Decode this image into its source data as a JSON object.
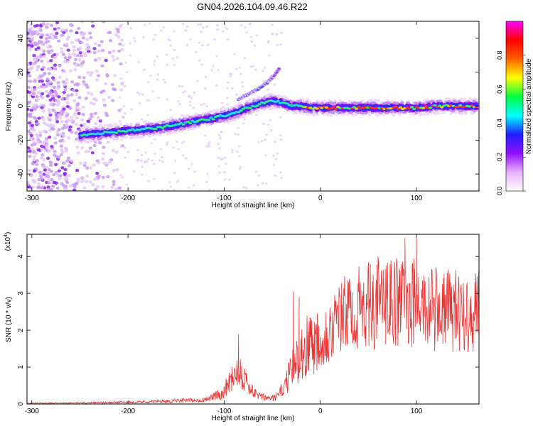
{
  "title": "GN04.2026.104.09.46.R22",
  "chart_data": [
    {
      "type": "heatmap",
      "xlabel": "Height of straight line (km)",
      "ylabel": "Frequency (Hz)",
      "xlim": [
        -305,
        165
      ],
      "ylim": [
        -50,
        50
      ],
      "xticks": [
        -300,
        -200,
        -100,
        0,
        100
      ],
      "yticks": [
        -40,
        -20,
        0,
        20,
        40
      ],
      "grid": false,
      "colorbar": {
        "label": "Normalized spectral amplitude",
        "ticks": [
          0.0,
          0.2,
          0.4,
          0.6,
          0.8
        ],
        "range": [
          0,
          1
        ],
        "colors": [
          "#ffffff",
          "#e8b0ff",
          "#9010ff",
          "#2020ff",
          "#00ffff",
          "#00ff40",
          "#ffff00",
          "#ff6000",
          "#ff0000",
          "#ff00ff"
        ]
      },
      "ridge": {
        "x": [
          -250,
          -230,
          -210,
          -190,
          -170,
          -150,
          -130,
          -110,
          -90,
          -75,
          -60,
          -48,
          -40,
          -30,
          -20,
          -10,
          0,
          20,
          40,
          60,
          80,
          100,
          120,
          140,
          160
        ],
        "y": [
          -17,
          -16,
          -15,
          -14,
          -13,
          -11,
          -9,
          -7,
          -4,
          -1,
          2,
          3,
          2,
          0,
          0,
          -1,
          -1,
          -1,
          -1,
          -1,
          -1,
          -1,
          0,
          0,
          0
        ]
      },
      "side_branch": {
        "x": [
          -85,
          -75,
          -65,
          -55,
          -48,
          -43
        ],
        "y": [
          4,
          7,
          10,
          14,
          18,
          22
        ]
      }
    },
    {
      "type": "line",
      "xlabel": "Height of straight line (km)",
      "ylabel": "SNR (10 * v/v)",
      "scale_note": "(x10",
      "scale_exp": "4",
      "xlim": [
        -305,
        165
      ],
      "ylim": [
        0,
        4.6
      ],
      "xticks": [
        -300,
        -200,
        -100,
        0,
        100
      ],
      "yticks": [
        0,
        1,
        2,
        3,
        4
      ],
      "color": "#ee3333",
      "grid": false,
      "envelope": {
        "x": [
          -305,
          -250,
          -200,
          -150,
          -120,
          -105,
          -100,
          -95,
          -85,
          -78,
          -70,
          -60,
          -50,
          -45,
          -38,
          -30,
          -20,
          -10,
          0,
          10,
          20,
          30,
          50,
          70,
          90,
          100,
          110,
          130,
          150,
          165
        ],
        "y": [
          0.02,
          0.03,
          0.05,
          0.08,
          0.12,
          0.25,
          0.35,
          0.6,
          1.0,
          0.65,
          0.3,
          0.18,
          0.15,
          0.2,
          0.45,
          0.9,
          1.4,
          1.7,
          1.8,
          2.0,
          2.3,
          2.5,
          2.65,
          2.7,
          2.8,
          2.7,
          2.6,
          2.55,
          2.5,
          2.5
        ]
      },
      "peaks": {
        "x": [
          -85,
          -28,
          -22,
          60,
          88,
          100,
          52
        ],
        "y": [
          1.9,
          3.05,
          2.9,
          4.0,
          4.5,
          4.5,
          3.8
        ]
      }
    }
  ]
}
